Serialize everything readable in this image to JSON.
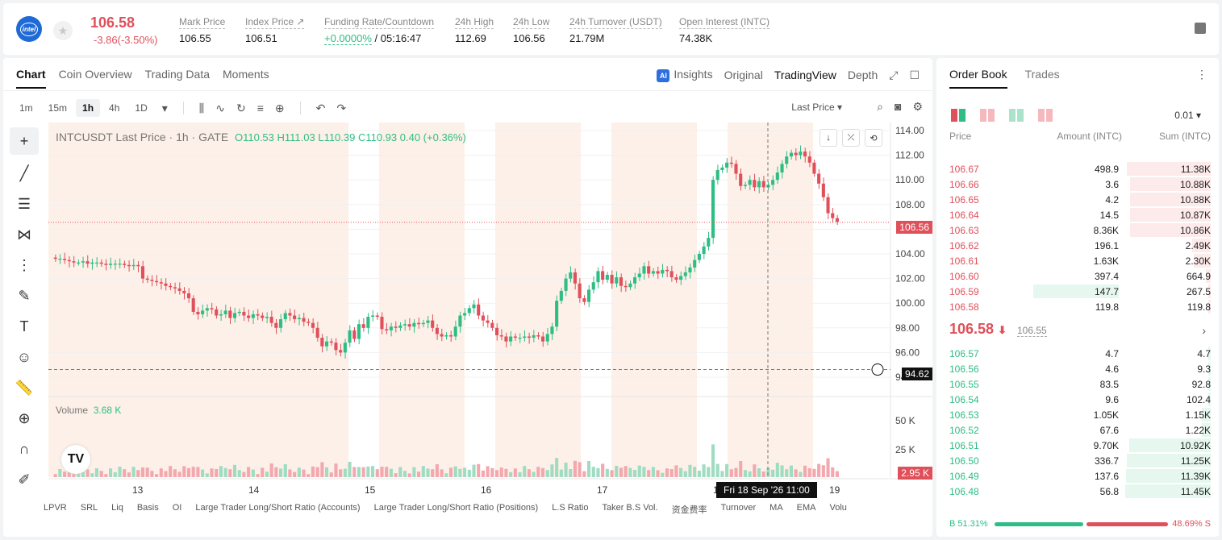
{
  "header": {
    "logo_text": "intel",
    "price": "106.58",
    "change": "-3.86(-3.50%)",
    "stats": [
      {
        "label": "Mark Price",
        "value": "106.55"
      },
      {
        "label": "Index Price ↗",
        "value": "106.51"
      },
      {
        "label": "Funding Rate/Countdown",
        "value_green": "+0.0000%",
        "value": " / 05:16:47"
      },
      {
        "label": "24h High",
        "value": "112.69"
      },
      {
        "label": "24h Low",
        "value": "106.56"
      },
      {
        "label": "24h Turnover (USDT)",
        "value": "21.79M"
      },
      {
        "label": "Open Interest (INTC)",
        "value": "74.38K"
      }
    ]
  },
  "chart_tabs": [
    "Chart",
    "Coin Overview",
    "Trading Data",
    "Moments"
  ],
  "chart_view_tabs": {
    "ai_badge": "AI",
    "insights": "Insights",
    "original": "Original",
    "tradingview": "TradingView",
    "depth": "Depth"
  },
  "intervals": [
    "1m",
    "15m",
    "1h",
    "4h",
    "1D"
  ],
  "last_price_select": "Last Price",
  "legend": {
    "symbol": "INTCUSDT Last Price · 1h · GATE",
    "ohlc": "O110.53  H111.03  L110.39  C110.93  0.40 (+0.36%)"
  },
  "volume_legend": {
    "label": "Volume",
    "value": "3.68 K"
  },
  "tv_logo": "TV",
  "indicators": [
    "LPVR",
    "SRL",
    "Liq",
    "Basis",
    "OI",
    "Large Trader Long/Short Ratio (Accounts)",
    "Large Trader Long/Short Ratio (Positions)",
    "L.S Ratio",
    "Taker B.S Vol.",
    "资金费率",
    "Turnover",
    "MA",
    "EMA",
    "Volu"
  ],
  "price_tags": {
    "last": "106.56",
    "cursor": "94.62",
    "volume": "2.95 K"
  },
  "time_tag": "Fri 18 Sep '26    11:00",
  "chart_data": {
    "type": "candlestick",
    "title": "INTCUSDT Last Price · 1h · GATE",
    "y_ticks": [
      "114.00",
      "112.00",
      "110.00",
      "108.00",
      "106.00",
      "104.00",
      "102.00",
      "100.00",
      "98.00",
      "96.00",
      "94.00"
    ],
    "volume_ticks": [
      "50 K",
      "25 K"
    ],
    "x_ticks": [
      "13",
      "14",
      "15",
      "16",
      "17",
      "18",
      "19"
    ],
    "ylim": [
      94,
      114
    ],
    "close_path": [
      103.6,
      103.6,
      103.5,
      103.4,
      103.3,
      103.3,
      103.4,
      103.2,
      103.3,
      103.3,
      103.2,
      103.1,
      103.2,
      103.2,
      103.2,
      103.1,
      103.0,
      103.1,
      103.0,
      102.0,
      101.9,
      101.8,
      101.7,
      101.6,
      101.4,
      101.3,
      101.2,
      101.0,
      100.8,
      100.4,
      99.3,
      99.1,
      99.4,
      99.6,
      99.5,
      99.0,
      99.1,
      99.4,
      98.8,
      99.2,
      99.3,
      99.0,
      98.8,
      99.1,
      99.0,
      98.8,
      98.9,
      98.4,
      98.0,
      98.7,
      99.2,
      99.0,
      98.7,
      98.8,
      98.5,
      98.4,
      98.0,
      97.2,
      96.5,
      96.9,
      96.8,
      96.2,
      96.0,
      96.8,
      97.8,
      97.1,
      98.3,
      98.0,
      98.9,
      99.0,
      98.9,
      97.9,
      97.8,
      98.1,
      98.0,
      98.2,
      98.3,
      98.1,
      98.4,
      98.3,
      98.4,
      98.6,
      98.0,
      97.5,
      97.3,
      97.4,
      97.3,
      98.1,
      99.0,
      99.2,
      99.6,
      99.9,
      99.0,
      98.6,
      98.4,
      98.0,
      97.4,
      97.3,
      96.9,
      97.3,
      97.2,
      97.2,
      97.3,
      97.2,
      97.4,
      97.3,
      96.9,
      97.5,
      98.1,
      100.2,
      101.0,
      102.0,
      102.5,
      101.6,
      100.4,
      100.1,
      101.1,
      101.7,
      102.6,
      101.9,
      102.3,
      101.6,
      102.1,
      101.4,
      101.3,
      101.6,
      102.1,
      102.4,
      103.0,
      102.4,
      102.6,
      102.4,
      102.7,
      102.6,
      102.1,
      101.9,
      102.2,
      102.5,
      102.9,
      103.5,
      104.0,
      104.6,
      105.3,
      110.0,
      110.8,
      111.0,
      111.4,
      111.3,
      110.5,
      109.5,
      109.6,
      110.0,
      109.4,
      109.9,
      109.4,
      109.6,
      110.0,
      110.6,
      111.3,
      111.9,
      112.2,
      112.0,
      112.3,
      111.9,
      111.4,
      110.5,
      109.7,
      108.6,
      107.3,
      106.9,
      106.6
    ]
  },
  "orderbook": {
    "tabs": [
      "Order Book",
      "Trades"
    ],
    "precision": "0.01",
    "headers": [
      "Price",
      "Amount (INTC)",
      "Sum (INTC)"
    ],
    "asks": [
      {
        "price": "106.67",
        "amount": "498.9",
        "sum": "11.38K",
        "depth": 0.98
      },
      {
        "price": "106.66",
        "amount": "3.6",
        "sum": "10.88K",
        "depth": 0.94
      },
      {
        "price": "106.65",
        "amount": "4.2",
        "sum": "10.88K",
        "depth": 0.94
      },
      {
        "price": "106.64",
        "amount": "14.5",
        "sum": "10.87K",
        "depth": 0.94
      },
      {
        "price": "106.63",
        "amount": "8.36K",
        "sum": "10.86K",
        "depth": 0.94
      },
      {
        "price": "106.62",
        "amount": "196.1",
        "sum": "2.49K",
        "depth": 0.22
      },
      {
        "price": "106.61",
        "amount": "1.63K",
        "sum": "2.30K",
        "depth": 0.2
      },
      {
        "price": "106.60",
        "amount": "397.4",
        "sum": "664.9",
        "depth": 0.06
      },
      {
        "price": "106.59",
        "amount": "147.7",
        "sum": "267.5",
        "depth": 0.02,
        "highlight": true
      },
      {
        "price": "106.58",
        "amount": "119.8",
        "sum": "119.8",
        "depth": 0.01
      }
    ],
    "mid": {
      "price": "106.58",
      "arrow": "⬇",
      "mark": "106.55"
    },
    "bids": [
      {
        "price": "106.57",
        "amount": "4.7",
        "sum": "4.7",
        "depth": 0.0
      },
      {
        "price": "106.56",
        "amount": "4.6",
        "sum": "9.3",
        "depth": 0.0
      },
      {
        "price": "106.55",
        "amount": "83.5",
        "sum": "92.8",
        "depth": 0.01
      },
      {
        "price": "106.54",
        "amount": "9.6",
        "sum": "102.4",
        "depth": 0.01
      },
      {
        "price": "106.53",
        "amount": "1.05K",
        "sum": "1.15K",
        "depth": 0.1
      },
      {
        "price": "106.52",
        "amount": "67.6",
        "sum": "1.22K",
        "depth": 0.1
      },
      {
        "price": "106.51",
        "amount": "9.70K",
        "sum": "10.92K",
        "depth": 0.95
      },
      {
        "price": "106.50",
        "amount": "336.7",
        "sum": "11.25K",
        "depth": 0.98
      },
      {
        "price": "106.49",
        "amount": "137.6",
        "sum": "11.39K",
        "depth": 0.99
      },
      {
        "price": "106.48",
        "amount": "56.8",
        "sum": "11.45K",
        "depth": 1.0
      }
    ],
    "buy_label": "B 51.31%",
    "sell_label": "48.69% S",
    "buy_ratio": 0.5131
  },
  "colors": {
    "up": "#2ebd85",
    "down": "#e0505a",
    "shade": "#fdf0e8"
  }
}
